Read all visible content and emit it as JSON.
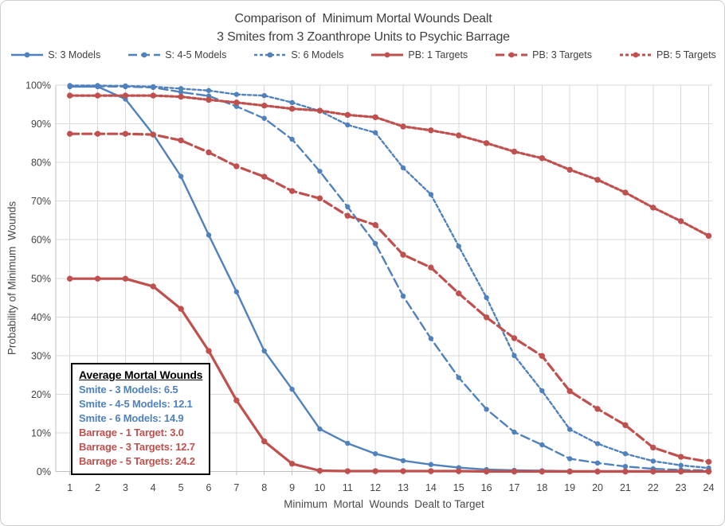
{
  "title": {
    "line1": "Comparison of  Minimum Mortal Wounds Dealt",
    "line2": "3 Smites from 3 Zoanthrope Units to Psychic Barrage"
  },
  "colors": {
    "smite_blue": "#4F81BD",
    "barrage_red": "#C0504D",
    "gridline": "#D9D9D9",
    "axis_line": "#BFBFBF",
    "text": "#444444"
  },
  "chart_data": {
    "type": "line",
    "x": [
      1,
      2,
      3,
      4,
      5,
      6,
      7,
      8,
      9,
      10,
      11,
      12,
      13,
      14,
      15,
      16,
      17,
      18,
      19,
      20,
      21,
      22,
      23,
      24
    ],
    "xlabel": "Minimum  Mortal  Wounds  Dealt to Target",
    "ylabel": "Probability of Minimum  Wounds",
    "ylim": [
      0,
      100
    ],
    "yticks": [
      "0%",
      "10%",
      "20%",
      "30%",
      "40%",
      "50%",
      "60%",
      "70%",
      "80%",
      "90%",
      "100%"
    ],
    "grid": true,
    "legend_position": "top",
    "series": [
      {
        "name": "S: 3 Models",
        "color": "#4F81BD",
        "line": "solid",
        "group": "smite",
        "values": [
          99.6,
          99.6,
          96.4,
          87.3,
          76.4,
          61.2,
          46.5,
          31.2,
          21.3,
          11.0,
          7.3,
          4.6,
          2.8,
          1.8,
          1.0,
          0.5,
          0.3,
          0.2,
          0.1,
          0.1,
          0.1,
          0.1,
          0.0,
          0.0
        ]
      },
      {
        "name": "S: 4-5 Models",
        "color": "#4F81BD",
        "line": "long-dash",
        "group": "smite",
        "values": [
          99.7,
          99.7,
          99.6,
          99.4,
          98.2,
          97.2,
          94.5,
          91.4,
          86.0,
          77.7,
          68.5,
          59.0,
          45.4,
          34.4,
          24.3,
          16.1,
          10.2,
          6.9,
          3.3,
          2.2,
          1.3,
          0.7,
          0.4,
          0.3
        ]
      },
      {
        "name": "S: 6 Models",
        "color": "#4F81BD",
        "line": "short-dash",
        "group": "smite",
        "values": [
          99.9,
          99.9,
          99.8,
          99.6,
          99.1,
          98.6,
          97.6,
          97.3,
          95.5,
          93.3,
          89.7,
          87.7,
          78.6,
          71.7,
          58.3,
          45.0,
          30.0,
          20.9,
          10.9,
          7.2,
          4.6,
          2.7,
          1.6,
          0.9
        ]
      },
      {
        "name": "PB: 1 Targets",
        "color": "#C0504D",
        "line": "solid",
        "group": "barrage",
        "values": [
          49.9,
          49.9,
          49.9,
          47.9,
          42.1,
          31.2,
          18.4,
          7.8,
          2.0,
          0.2,
          0.1,
          0.1,
          0.1,
          0.1,
          0.1,
          0.0,
          0.0,
          0.0,
          0.0,
          0.0,
          0.0,
          0.0,
          0.0,
          0.0
        ]
      },
      {
        "name": "PB: 3 Targets",
        "color": "#C0504D",
        "line": "long-dash",
        "group": "barrage",
        "values": [
          87.4,
          87.4,
          87.4,
          87.2,
          85.7,
          82.6,
          79.0,
          76.3,
          72.6,
          70.7,
          66.2,
          63.8,
          56.1,
          52.8,
          46.1,
          39.9,
          34.5,
          29.9,
          20.8,
          16.2,
          12.0,
          6.2,
          3.8,
          2.5
        ]
      },
      {
        "name": "PB: 5 Targets",
        "color": "#C0504D",
        "line": "short-dash",
        "group": "barrage",
        "values": [
          97.3,
          97.3,
          97.3,
          97.3,
          97.0,
          96.2,
          95.5,
          94.7,
          93.9,
          93.4,
          92.3,
          91.7,
          89.3,
          88.3,
          87.0,
          85.0,
          82.8,
          81.1,
          78.1,
          75.5,
          72.2,
          68.3,
          64.8,
          61.0
        ]
      }
    ]
  },
  "annotation": {
    "heading": "Average Mortal Wounds",
    "lines": [
      {
        "text": "Smite - 3 Models: 6.5",
        "color": "#4F81BD"
      },
      {
        "text": "Smite - 4-5 Models: 12.1",
        "color": "#4F81BD"
      },
      {
        "text": "Smite - 6 Models: 14.9",
        "color": "#4F81BD"
      },
      {
        "text": "Barrage - 1 Target: 3.0",
        "color": "#C0504D"
      },
      {
        "text": "Barrage - 3 Targets: 12.7",
        "color": "#C0504D"
      },
      {
        "text": "Barrage - 5 Targets: 24.2",
        "color": "#C0504D"
      }
    ]
  }
}
